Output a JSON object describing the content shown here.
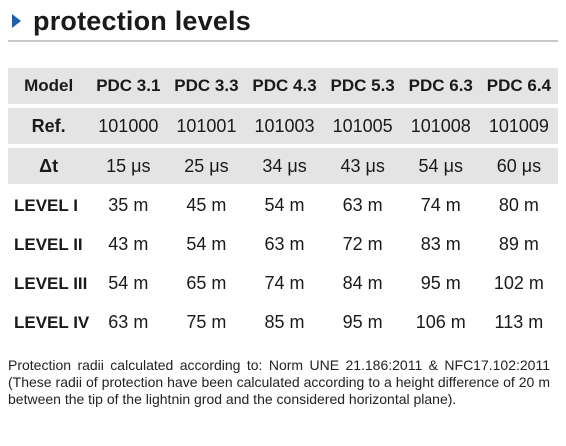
{
  "title": "protection levels",
  "table": {
    "header": [
      "Model",
      "PDC 3.1",
      "PDC 3.3",
      "PDC 4.3",
      "PDC 5.3",
      "PDC 6.3",
      "PDC 6.4"
    ],
    "rows": [
      [
        "Ref.",
        "101000",
        "101001",
        "101003",
        "101005",
        "101008",
        "101009"
      ],
      [
        "Δt",
        "15 μs",
        "25 μs",
        "34 μs",
        "43 μs",
        "54 μs",
        "60 μs"
      ],
      [
        "LEVEL I",
        "35 m",
        "45 m",
        "54 m",
        "63 m",
        "74 m",
        "80 m"
      ],
      [
        "LEVEL II",
        "43 m",
        "54 m",
        "63 m",
        "72 m",
        "83 m",
        "89 m"
      ],
      [
        "LEVEL III",
        "54 m",
        "65 m",
        "74 m",
        "84 m",
        "95 m",
        "102 m"
      ],
      [
        "LEVEL IV",
        "63 m",
        "75 m",
        "85 m",
        "95 m",
        "106 m",
        "113 m"
      ]
    ]
  },
  "note": "Protection radii calculated according to: Norm UNE 21.186:2011 & NFC17.102:2011 (These radii of protection have been calculated according to a height difference of 20 m between the tip of the lightnin grod and the considered horizontal plane)."
}
